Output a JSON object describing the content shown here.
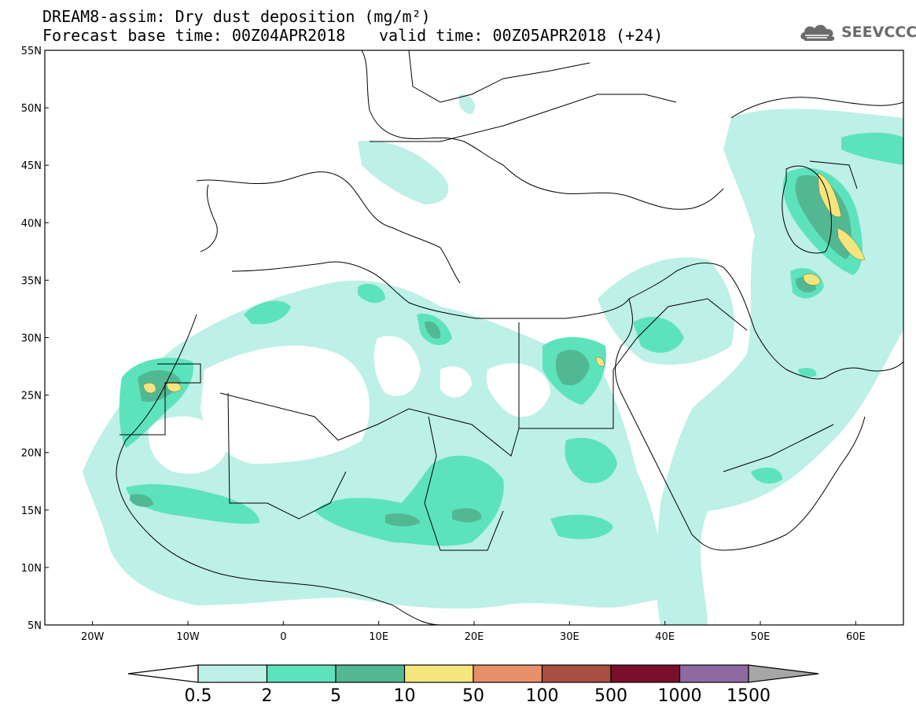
{
  "title": {
    "line1": "DREAM8-assim: Dry dust deposition (mg/m²)",
    "line2": "Forecast base time: 00Z04APR2018",
    "line3": "valid time: 00Z05APR2018 (+24)"
  },
  "logo": {
    "text": "SEEVCCC",
    "icon": "cloud-logo-icon"
  },
  "map": {
    "lon_range": [
      -25,
      65
    ],
    "lat_range": [
      5,
      55
    ],
    "lon_ticks": [
      {
        "v": -20,
        "label": "20W"
      },
      {
        "v": -10,
        "label": "10W"
      },
      {
        "v": 0,
        "label": "0"
      },
      {
        "v": 10,
        "label": "10E"
      },
      {
        "v": 20,
        "label": "20E"
      },
      {
        "v": 30,
        "label": "30E"
      },
      {
        "v": 40,
        "label": "40E"
      },
      {
        "v": 50,
        "label": "50E"
      },
      {
        "v": 60,
        "label": "60E"
      }
    ],
    "lat_ticks": [
      {
        "v": 55,
        "label": "55N"
      },
      {
        "v": 50,
        "label": "50N"
      },
      {
        "v": 45,
        "label": "45N"
      },
      {
        "v": 40,
        "label": "40N"
      },
      {
        "v": 35,
        "label": "35N"
      },
      {
        "v": 30,
        "label": "30N"
      },
      {
        "v": 25,
        "label": "25N"
      },
      {
        "v": 20,
        "label": "20N"
      },
      {
        "v": 15,
        "label": "15N"
      },
      {
        "v": 10,
        "label": "10N"
      },
      {
        "v": 5,
        "label": "5N"
      }
    ]
  },
  "colorbar": {
    "levels": [
      "0.5",
      "2",
      "5",
      "10",
      "50",
      "100",
      "500",
      "1000",
      "1500"
    ],
    "colors": [
      "#bdf0e6",
      "#5de3bc",
      "#52b894",
      "#f4e67c",
      "#e8906a",
      "#a94e43",
      "#7a0f2b",
      "#8e6aa0"
    ],
    "under_color": "#ffffff",
    "over_color": "#a6a6a6"
  }
}
